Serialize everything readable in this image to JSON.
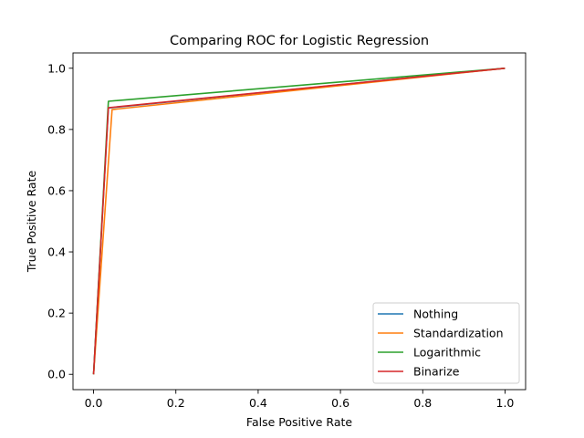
{
  "chart_data": {
    "type": "line",
    "title": "Comparing ROC for Logistic Regression",
    "xlabel": "False Positive Rate",
    "ylabel": "True Positive Rate",
    "xlim": [
      -0.05,
      1.05
    ],
    "ylim": [
      -0.05,
      1.05
    ],
    "xticks": [
      0.0,
      0.2,
      0.4,
      0.6,
      0.8,
      1.0
    ],
    "yticks": [
      0.0,
      0.2,
      0.4,
      0.6,
      0.8,
      1.0
    ],
    "xtick_labels": [
      "0.0",
      "0.2",
      "0.4",
      "0.6",
      "0.8",
      "1.0"
    ],
    "ytick_labels": [
      "0.0",
      "0.2",
      "0.4",
      "0.6",
      "0.8",
      "1.0"
    ],
    "grid": false,
    "legend_position": "bottom-right",
    "series": [
      {
        "name": "Nothing",
        "color": "#1f77b4",
        "x": [
          0.0,
          0.036,
          1.0
        ],
        "y": [
          0.0,
          0.87,
          1.0
        ]
      },
      {
        "name": "Standardization",
        "color": "#ff7f0e",
        "x": [
          0.0,
          0.045,
          1.0
        ],
        "y": [
          0.0,
          0.865,
          1.0
        ]
      },
      {
        "name": "Logarithmic",
        "color": "#2ca02c",
        "x": [
          0.0,
          0.036,
          1.0
        ],
        "y": [
          0.0,
          0.892,
          1.0
        ]
      },
      {
        "name": "Binarize",
        "color": "#d62728",
        "x": [
          0.0,
          0.036,
          1.0
        ],
        "y": [
          0.0,
          0.871,
          1.0
        ]
      }
    ]
  }
}
